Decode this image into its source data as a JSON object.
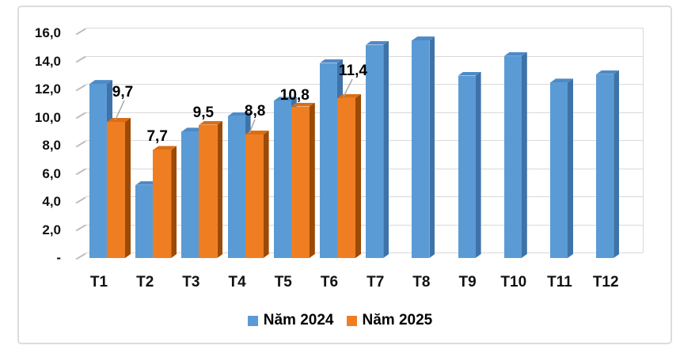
{
  "colors": {
    "series_2024_front": "#5B9BD5",
    "series_2024_side": "#3E73A9",
    "series_2024_top": "#4E8AC8",
    "series_2025_front": "#EF7D22",
    "series_2025_side": "#9C4A06",
    "series_2025_top": "#DB6E12",
    "gridline": "#D9D9D9",
    "frame_border": "#DCDCDC",
    "text": "#000000"
  },
  "chart_data": {
    "type": "bar",
    "style": "3d-clustered-column",
    "title": "",
    "xlabel": "",
    "ylabel": "",
    "categories": [
      "T1",
      "T2",
      "T3",
      "T4",
      "T5",
      "T6",
      "T7",
      "T8",
      "T9",
      "T10",
      "T11",
      "T12"
    ],
    "series": [
      {
        "name": "Năm 2024",
        "color": "#5B9BD5",
        "values": [
          12.4,
          5.2,
          9.0,
          10.1,
          11.2,
          13.9,
          15.2,
          15.5,
          13.0,
          14.4,
          12.5,
          13.1
        ]
      },
      {
        "name": "Năm 2025",
        "color": "#EF7D22",
        "values": [
          9.7,
          7.7,
          9.5,
          8.8,
          10.8,
          11.4,
          null,
          null,
          null,
          null,
          null,
          null
        ],
        "data_labels": [
          "9,7",
          "7,7",
          "9,5",
          "8,8",
          "10,8",
          "11,4"
        ]
      }
    ],
    "y_ticks": [
      "16,0",
      "14,0",
      "12,0",
      "10,0",
      "8,0",
      "6,0",
      "4,0",
      "2,0",
      "-"
    ],
    "y_tick_values": [
      16,
      14,
      12,
      10,
      8,
      6,
      4,
      2,
      0
    ],
    "ylim": [
      0,
      16.7
    ],
    "grid": true,
    "legend_position": "bottom"
  }
}
